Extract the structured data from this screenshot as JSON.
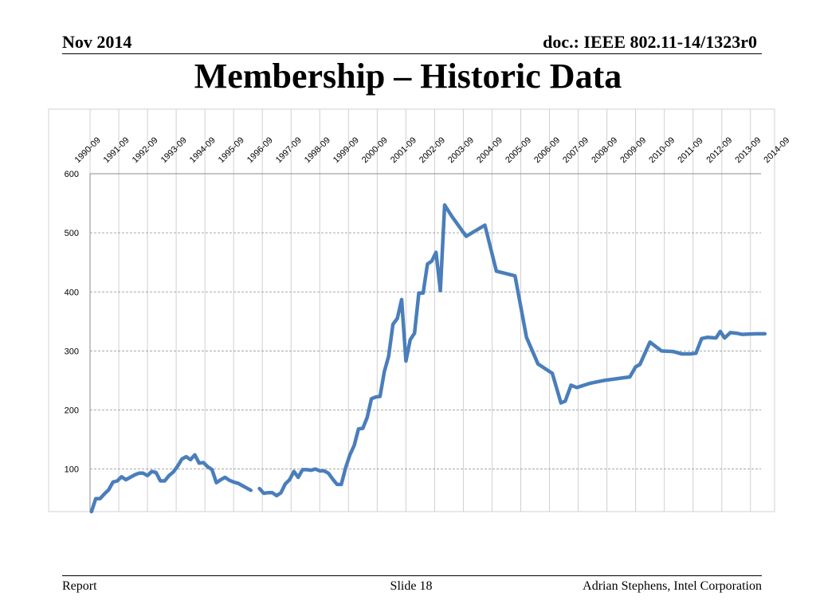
{
  "header": {
    "date": "Nov 2014",
    "doc": "doc.: IEEE 802.11-14/1323r0"
  },
  "title": "Membership – Historic Data",
  "footer": {
    "left": "Report",
    "center": "Slide 18",
    "right": "Adrian Stephens, Intel Corporation"
  },
  "colors": {
    "line": "#4a7ebb",
    "grid": "#8c8c8c",
    "frame": "#d0d0d0"
  },
  "chart_data": {
    "type": "line",
    "title": "",
    "xlabel": "",
    "ylabel": "",
    "x_tick_labels": [
      "1990-09",
      "1991-09",
      "1992-09",
      "1993-09",
      "1994-09",
      "1995-09",
      "1996-09",
      "1997-09",
      "1998-09",
      "1999-09",
      "2000-09",
      "2001-09",
      "2002-09",
      "2003-09",
      "2004-09",
      "2005-09",
      "2006-09",
      "2007-09",
      "2008-09",
      "2009-09",
      "2010-09",
      "2011-09",
      "2012-09",
      "2013-09",
      "2014-09"
    ],
    "xlim": [
      1990.7,
      2014.9
    ],
    "ylim": [
      28,
      600
    ],
    "y_ticks": [
      100,
      200,
      300,
      400,
      500,
      600
    ],
    "grid": true,
    "legend": "none",
    "series": [
      {
        "segments": [
          [
            [
              1990.75,
              28
            ],
            [
              1990.9,
              50
            ],
            [
              1991.05,
              50
            ],
            [
              1991.2,
              58
            ],
            [
              1991.35,
              65
            ],
            [
              1991.5,
              78
            ],
            [
              1991.65,
              80
            ],
            [
              1991.8,
              87
            ],
            [
              1991.95,
              82
            ],
            [
              1992.1,
              86
            ],
            [
              1992.25,
              90
            ],
            [
              1992.4,
              93
            ],
            [
              1992.55,
              93
            ],
            [
              1992.7,
              89
            ],
            [
              1992.85,
              96
            ],
            [
              1993.0,
              94
            ],
            [
              1993.15,
              80
            ],
            [
              1993.3,
              80
            ],
            [
              1993.45,
              89
            ],
            [
              1993.6,
              95
            ],
            [
              1993.75,
              105
            ],
            [
              1993.9,
              117
            ],
            [
              1994.05,
              121
            ],
            [
              1994.2,
              116
            ],
            [
              1994.35,
              124
            ],
            [
              1994.5,
              110
            ],
            [
              1994.65,
              111
            ],
            [
              1994.8,
              104
            ],
            [
              1994.95,
              99
            ],
            [
              1995.1,
              77
            ],
            [
              1995.25,
              82
            ],
            [
              1995.4,
              86
            ],
            [
              1995.55,
              81
            ],
            [
              1995.7,
              78
            ],
            [
              1995.85,
              76
            ],
            [
              1996.0,
              72
            ],
            [
              1996.15,
              68
            ],
            [
              1996.3,
              64
            ]
          ],
          [
            [
              1996.6,
              67
            ],
            [
              1996.75,
              59
            ],
            [
              1996.9,
              60
            ],
            [
              1997.05,
              60
            ],
            [
              1997.2,
              55
            ],
            [
              1997.35,
              60
            ],
            [
              1997.5,
              75
            ],
            [
              1997.65,
              82
            ],
            [
              1997.8,
              96
            ],
            [
              1997.95,
              86
            ],
            [
              1998.1,
              99
            ],
            [
              1998.25,
              99
            ],
            [
              1998.4,
              98
            ],
            [
              1998.55,
              100
            ],
            [
              1998.7,
              97
            ],
            [
              1998.85,
              97
            ],
            [
              1999.0,
              93
            ],
            [
              1999.15,
              83
            ],
            [
              1999.3,
              74
            ],
            [
              1999.45,
              74
            ],
            [
              1999.6,
              102
            ],
            [
              1999.75,
              124
            ],
            [
              1999.9,
              140
            ],
            [
              2000.05,
              168
            ],
            [
              2000.2,
              169
            ],
            [
              2000.35,
              187
            ],
            [
              2000.5,
              219
            ],
            [
              2000.65,
              222
            ],
            [
              2000.8,
              223
            ],
            [
              2000.95,
              265
            ],
            [
              2001.1,
              291
            ],
            [
              2001.25,
              345
            ],
            [
              2001.4,
              355
            ],
            [
              2001.55,
              387
            ],
            [
              2001.7,
              283
            ],
            [
              2001.85,
              319
            ],
            [
              2002.0,
              330
            ],
            [
              2002.15,
              398
            ],
            [
              2002.3,
              398
            ],
            [
              2002.45,
              447
            ],
            [
              2002.6,
              452
            ],
            [
              2002.75,
              467
            ],
            [
              2002.9,
              402
            ],
            [
              2003.05,
              547
            ],
            [
              2003.3,
              528
            ],
            [
              2003.8,
              494
            ],
            [
              2004.45,
              513
            ],
            [
              2004.85,
              435
            ],
            [
              2005.5,
              427
            ],
            [
              2005.9,
              323
            ],
            [
              2006.3,
              278
            ],
            [
              2006.8,
              262
            ],
            [
              2007.1,
              212
            ],
            [
              2007.25,
              215
            ],
            [
              2007.45,
              242
            ],
            [
              2007.65,
              238
            ],
            [
              2008.1,
              245
            ],
            [
              2008.6,
              250
            ],
            [
              2009.5,
              256
            ],
            [
              2009.7,
              273
            ],
            [
              2009.85,
              277
            ],
            [
              2010.2,
              315
            ],
            [
              2010.6,
              300
            ],
            [
              2011.0,
              299
            ],
            [
              2011.3,
              295
            ],
            [
              2011.6,
              295
            ],
            [
              2011.8,
              296
            ],
            [
              2012.0,
              321
            ],
            [
              2012.2,
              323
            ],
            [
              2012.5,
              322
            ],
            [
              2012.65,
              333
            ],
            [
              2012.8,
              322
            ],
            [
              2013.0,
              331
            ],
            [
              2013.2,
              330
            ],
            [
              2013.4,
              328
            ],
            [
              2013.9,
              329
            ],
            [
              2014.2,
              329
            ]
          ]
        ]
      }
    ]
  }
}
